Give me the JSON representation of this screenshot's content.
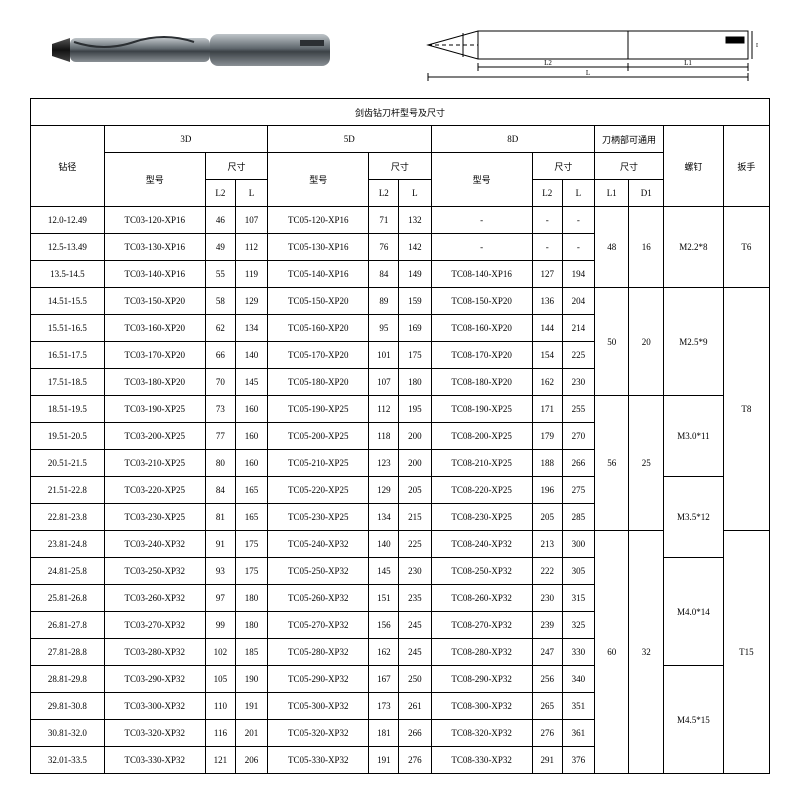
{
  "title": "剑齿钻刀杆型号及尺寸",
  "headers": {
    "dia": "钻径",
    "grp3d": "3D",
    "grp5d": "5D",
    "grp8d": "8D",
    "shank": "刀柄部可通用",
    "screw": "螺钉",
    "wrench": "扳手",
    "model": "型号",
    "size": "尺寸",
    "l2": "L2",
    "l": "L",
    "l1": "L1",
    "d1": "D1"
  },
  "rows": [
    {
      "dia": "12.0-12.49",
      "m3": "TC03-120-XP16",
      "a3": "46",
      "b3": "107",
      "m5": "TC05-120-XP16",
      "a5": "71",
      "b5": "132",
      "m8": "-",
      "a8": "-",
      "b8": "-"
    },
    {
      "dia": "12.5-13.49",
      "m3": "TC03-130-XP16",
      "a3": "49",
      "b3": "112",
      "m5": "TC05-130-XP16",
      "a5": "76",
      "b5": "142",
      "m8": "-",
      "a8": "-",
      "b8": "-"
    },
    {
      "dia": "13.5-14.5",
      "m3": "TC03-140-XP16",
      "a3": "55",
      "b3": "119",
      "m5": "TC05-140-XP16",
      "a5": "84",
      "b5": "149",
      "m8": "TC08-140-XP16",
      "a8": "127",
      "b8": "194"
    },
    {
      "dia": "14.51-15.5",
      "m3": "TC03-150-XP20",
      "a3": "58",
      "b3": "129",
      "m5": "TC05-150-XP20",
      "a5": "89",
      "b5": "159",
      "m8": "TC08-150-XP20",
      "a8": "136",
      "b8": "204"
    },
    {
      "dia": "15.51-16.5",
      "m3": "TC03-160-XP20",
      "a3": "62",
      "b3": "134",
      "m5": "TC05-160-XP20",
      "a5": "95",
      "b5": "169",
      "m8": "TC08-160-XP20",
      "a8": "144",
      "b8": "214"
    },
    {
      "dia": "16.51-17.5",
      "m3": "TC03-170-XP20",
      "a3": "66",
      "b3": "140",
      "m5": "TC05-170-XP20",
      "a5": "101",
      "b5": "175",
      "m8": "TC08-170-XP20",
      "a8": "154",
      "b8": "225"
    },
    {
      "dia": "17.51-18.5",
      "m3": "TC03-180-XP20",
      "a3": "70",
      "b3": "145",
      "m5": "TC05-180-XP20",
      "a5": "107",
      "b5": "180",
      "m8": "TC08-180-XP20",
      "a8": "162",
      "b8": "230"
    },
    {
      "dia": "18.51-19.5",
      "m3": "TC03-190-XP25",
      "a3": "73",
      "b3": "160",
      "m5": "TC05-190-XP25",
      "a5": "112",
      "b5": "195",
      "m8": "TC08-190-XP25",
      "a8": "171",
      "b8": "255"
    },
    {
      "dia": "19.51-20.5",
      "m3": "TC03-200-XP25",
      "a3": "77",
      "b3": "160",
      "m5": "TC05-200-XP25",
      "a5": "118",
      "b5": "200",
      "m8": "TC08-200-XP25",
      "a8": "179",
      "b8": "270"
    },
    {
      "dia": "20.51-21.5",
      "m3": "TC03-210-XP25",
      "a3": "80",
      "b3": "160",
      "m5": "TC05-210-XP25",
      "a5": "123",
      "b5": "200",
      "m8": "TC08-210-XP25",
      "a8": "188",
      "b8": "266"
    },
    {
      "dia": "21.51-22.8",
      "m3": "TC03-220-XP25",
      "a3": "84",
      "b3": "165",
      "m5": "TC05-220-XP25",
      "a5": "129",
      "b5": "205",
      "m8": "TC08-220-XP25",
      "a8": "196",
      "b8": "275"
    },
    {
      "dia": "22.81-23.8",
      "m3": "TC03-230-XP25",
      "a3": "81",
      "b3": "165",
      "m5": "TC05-230-XP25",
      "a5": "134",
      "b5": "215",
      "m8": "TC08-230-XP25",
      "a8": "205",
      "b8": "285"
    },
    {
      "dia": "23.81-24.8",
      "m3": "TC03-240-XP32",
      "a3": "91",
      "b3": "175",
      "m5": "TC05-240-XP32",
      "a5": "140",
      "b5": "225",
      "m8": "TC08-240-XP32",
      "a8": "213",
      "b8": "300"
    },
    {
      "dia": "24.81-25.8",
      "m3": "TC03-250-XP32",
      "a3": "93",
      "b3": "175",
      "m5": "TC05-250-XP32",
      "a5": "145",
      "b5": "230",
      "m8": "TC08-250-XP32",
      "a8": "222",
      "b8": "305"
    },
    {
      "dia": "25.81-26.8",
      "m3": "TC03-260-XP32",
      "a3": "97",
      "b3": "180",
      "m5": "TC05-260-XP32",
      "a5": "151",
      "b5": "235",
      "m8": "TC08-260-XP32",
      "a8": "230",
      "b8": "315"
    },
    {
      "dia": "26.81-27.8",
      "m3": "TC03-270-XP32",
      "a3": "99",
      "b3": "180",
      "m5": "TC05-270-XP32",
      "a5": "156",
      "b5": "245",
      "m8": "TC08-270-XP32",
      "a8": "239",
      "b8": "325"
    },
    {
      "dia": "27.81-28.8",
      "m3": "TC03-280-XP32",
      "a3": "102",
      "b3": "185",
      "m5": "TC05-280-XP32",
      "a5": "162",
      "b5": "245",
      "m8": "TC08-280-XP32",
      "a8": "247",
      "b8": "330"
    },
    {
      "dia": "28.81-29.8",
      "m3": "TC03-290-XP32",
      "a3": "105",
      "b3": "190",
      "m5": "TC05-290-XP32",
      "a5": "167",
      "b5": "250",
      "m8": "TC08-290-XP32",
      "a8": "256",
      "b8": "340"
    },
    {
      "dia": "29.81-30.8",
      "m3": "TC03-300-XP32",
      "a3": "110",
      "b3": "191",
      "m5": "TC05-300-XP32",
      "a5": "173",
      "b5": "261",
      "m8": "TC08-300-XP32",
      "a8": "265",
      "b8": "351"
    },
    {
      "dia": "30.81-32.0",
      "m3": "TC03-320-XP32",
      "a3": "116",
      "b3": "201",
      "m5": "TC05-320-XP32",
      "a5": "181",
      "b5": "266",
      "m8": "TC08-320-XP32",
      "a8": "276",
      "b8": "361"
    },
    {
      "dia": "32.01-33.5",
      "m3": "TC03-330-XP32",
      "a3": "121",
      "b3": "206",
      "m5": "TC05-330-XP32",
      "a5": "191",
      "b5": "276",
      "m8": "TC08-330-XP32",
      "a8": "291",
      "b8": "376"
    }
  ],
  "shank_groups": [
    {
      "start": 0,
      "span": 3,
      "l1": "48",
      "d1": "16"
    },
    {
      "start": 3,
      "span": 4,
      "l1": "50",
      "d1": "20"
    },
    {
      "start": 7,
      "span": 5,
      "l1": "56",
      "d1": "25"
    },
    {
      "start": 12,
      "span": 9,
      "l1": "60",
      "d1": "32"
    }
  ],
  "screw_groups": [
    {
      "start": 0,
      "span": 3,
      "val": "M2.2*8"
    },
    {
      "start": 3,
      "span": 4,
      "val": "M2.5*9"
    },
    {
      "start": 7,
      "span": 3,
      "val": "M3.0*11"
    },
    {
      "start": 10,
      "span": 3,
      "val": "M3.5*12"
    },
    {
      "start": 13,
      "span": 4,
      "val": "M4.0*14"
    },
    {
      "start": 17,
      "span": 4,
      "val": "M4.5*15"
    }
  ],
  "wrench_groups": [
    {
      "start": 0,
      "span": 3,
      "val": "T6"
    },
    {
      "start": 3,
      "span": 9,
      "val": "T8"
    },
    {
      "start": 12,
      "span": 9,
      "val": "T15"
    }
  ]
}
